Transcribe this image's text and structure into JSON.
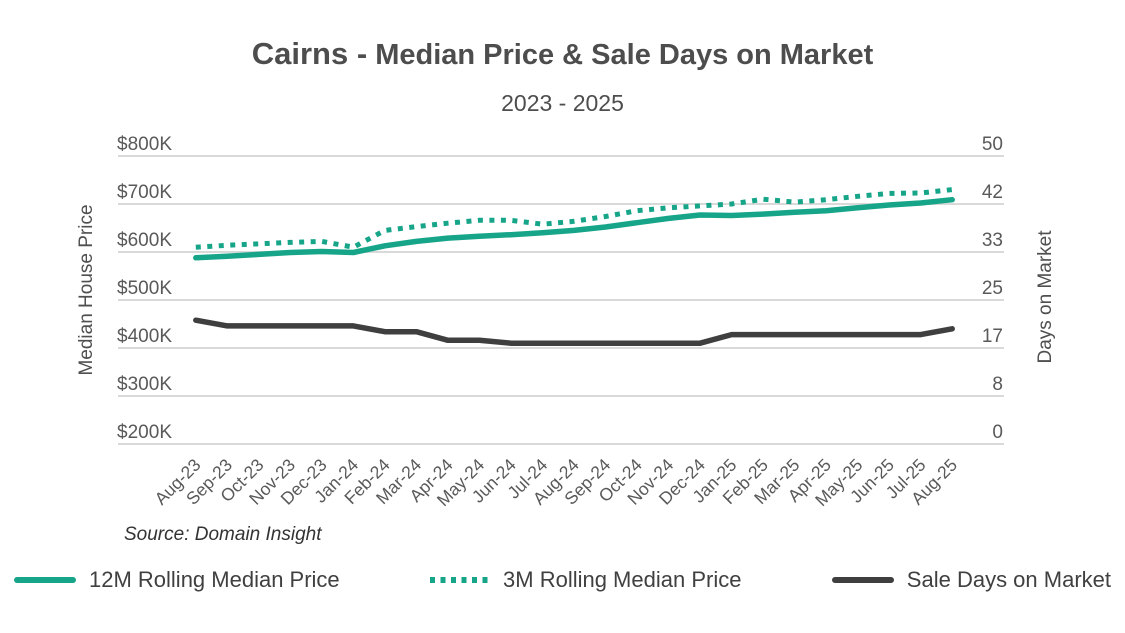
{
  "title": {
    "prefix": "Cairns -",
    "rest": " Median Price & Sale Days on Market"
  },
  "subtitle": "2023 - 2025",
  "source": "Source: Domain Insight",
  "legend": {
    "items": [
      {
        "label": "12M Rolling Median Price",
        "swatch": "solid-teal"
      },
      {
        "label": "3M Rolling Median Price",
        "swatch": "dotted-teal"
      },
      {
        "label": "Sale Days on Market",
        "swatch": "solid-dark"
      }
    ]
  },
  "colors": {
    "teal": "#17a589",
    "dark_line": "#3f3f3f",
    "grid": "#d9d9d9",
    "tick_text": "#595959",
    "title_text": "#4d4d4d"
  },
  "chart_data": {
    "type": "line",
    "title": "Cairns - Median Price & Sale Days on Market",
    "subtitle": "2023 - 2025",
    "grid": "horizontal-only",
    "legend_position": "bottom",
    "categories": [
      "Aug-23",
      "Sep-23",
      "Oct-23",
      "Nov-23",
      "Dec-23",
      "Jan-24",
      "Feb-24",
      "Mar-24",
      "Apr-24",
      "May-24",
      "Jun-24",
      "Jul-24",
      "Aug-24",
      "Sep-24",
      "Oct-24",
      "Nov-24",
      "Dec-24",
      "Jan-25",
      "Feb-25",
      "Mar-25",
      "Apr-25",
      "May-25",
      "Jun-25",
      "Jul-25",
      "Aug-25"
    ],
    "left_axis": {
      "label": "Median House Price",
      "ticks": [
        "$800K",
        "$700K",
        "$600K",
        "$500K",
        "$400K",
        "$300K",
        "$200K"
      ],
      "range_thousands": [
        200,
        800
      ]
    },
    "right_axis": {
      "label": "Days on Market",
      "ticks": [
        "50",
        "42",
        "33",
        "25",
        "17",
        "8",
        "0"
      ],
      "range": [
        0,
        50
      ]
    },
    "series": [
      {
        "name": "12M Rolling Median Price",
        "axis": "left",
        "style": "solid",
        "color": "#17a589",
        "values_thousands": [
          588,
          591,
          595,
          599,
          601,
          599,
          613,
          622,
          629,
          633,
          636,
          640,
          645,
          652,
          661,
          670,
          677,
          676,
          679,
          683,
          686,
          692,
          698,
          702,
          709
        ]
      },
      {
        "name": "3M Rolling Median Price",
        "axis": "left",
        "style": "dotted",
        "color": "#17a589",
        "values_thousands": [
          610,
          614,
          617,
          620,
          622,
          610,
          645,
          653,
          660,
          666,
          666,
          658,
          664,
          674,
          686,
          692,
          696,
          700,
          710,
          704,
          709,
          716,
          722,
          723,
          730
        ]
      },
      {
        "name": "Sale Days on Market",
        "axis": "right",
        "style": "solid",
        "color": "#3f3f3f",
        "values_days": [
          21.5,
          20.5,
          20.5,
          20.5,
          20.5,
          20.5,
          19.5,
          19.5,
          18,
          18,
          17.5,
          17.5,
          17.5,
          17.5,
          17.5,
          17.5,
          17.5,
          19,
          19,
          19,
          19,
          19,
          19,
          19,
          20
        ]
      }
    ]
  }
}
